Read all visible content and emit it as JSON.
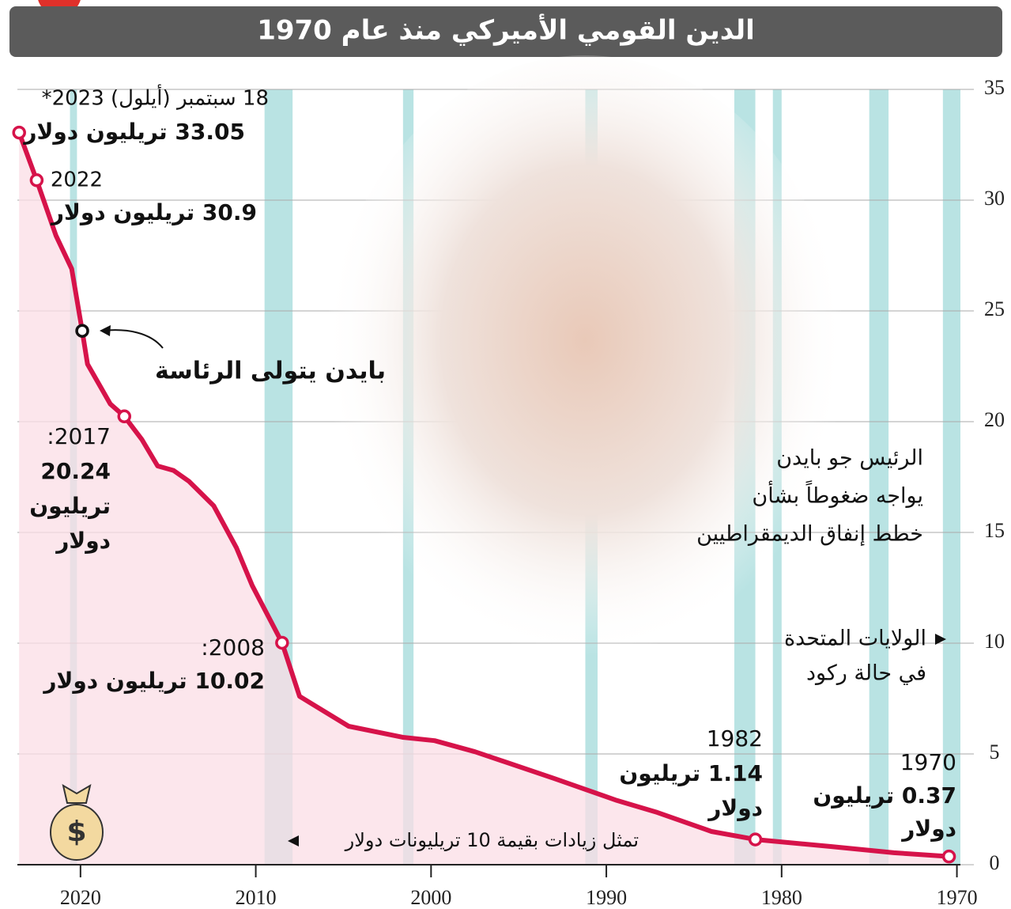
{
  "chart_data": {
    "type": "line",
    "title": "الدين القومي الأميركي منذ عام 1970",
    "x": [
      1970.45,
      1973.6,
      1977.2,
      1981.5,
      1984,
      1987.1,
      1989.4,
      1993,
      1997.5,
      1999.8,
      2001.6,
      2004.7,
      2007.5,
      2008.5,
      2010.2,
      2011.1,
      2012.4,
      2013.8,
      2014.7,
      2015.6,
      2016.5,
      2017.5,
      2018.3,
      2019.6,
      2019.9,
      2020.5,
      2021.4,
      2022.5,
      2023.5
    ],
    "values": [
      0.37,
      0.54,
      0.82,
      1.14,
      1.5,
      2.36,
      2.9,
      3.9,
      5.1,
      5.6,
      5.75,
      6.25,
      7.6,
      10.02,
      12.6,
      14.3,
      16.2,
      17.3,
      17.8,
      18,
      19.2,
      20.24,
      20.8,
      22.6,
      24.1,
      26.9,
      28.4,
      30.9,
      33.05
    ],
    "color": "#d6134a",
    "area_color": "#fbdde5",
    "recession_color": "#b9e3e3",
    "recessions": [
      [
        1969.8,
        1970.8
      ],
      [
        1973.9,
        1975
      ],
      [
        1980,
        1980.5
      ],
      [
        1981.5,
        1982.7
      ],
      [
        1990.5,
        1991.2
      ],
      [
        2001,
        2001.6
      ],
      [
        2007.9,
        2009.5
      ],
      [
        2020.2,
        2020.6
      ]
    ],
    "xlim": [
      2023.6,
      1969.8
    ],
    "ylim": [
      0,
      35
    ],
    "xticks": [
      1970,
      1980,
      1990,
      2000,
      2010,
      2020
    ],
    "yticks": [
      0,
      5,
      10,
      15,
      20,
      25,
      30,
      35
    ],
    "grid": true,
    "annotations": [
      {
        "lines": [
          "18 سبتمبر (أيلول) 2023*"
        ]
      },
      {
        "lines": [
          "33.05 تريليون دولار"
        ]
      },
      {
        "lines": [
          "2022"
        ]
      },
      {
        "lines": [
          "30.9 تريليون دولار"
        ]
      },
      {
        "lines": [
          "بايدن يتولى الرئاسة"
        ]
      },
      {
        "lines": [
          "2017:",
          "20.24",
          "تريليون",
          "دولار"
        ]
      },
      {
        "lines": [
          "2008:",
          "10.02 تريليون دولار"
        ]
      },
      {
        "lines": [
          "1982",
          "1.14 تريليون",
          "دولار"
        ]
      },
      {
        "lines": [
          "1970",
          "0.37 تريليون",
          "دولار"
        ]
      },
      {
        "lines": [
          "الرئيس جو بايدن",
          "يواجه ضغوطاً بشأن",
          "خطط إنفاق الديمقراطيين"
        ]
      },
      {
        "lines": [
          "الولايات المتحدة",
          "في حالة ركود"
        ]
      },
      {
        "lines": [
          "تمثل زيادات بقيمة 10 تريليونات دولار"
        ]
      }
    ]
  }
}
